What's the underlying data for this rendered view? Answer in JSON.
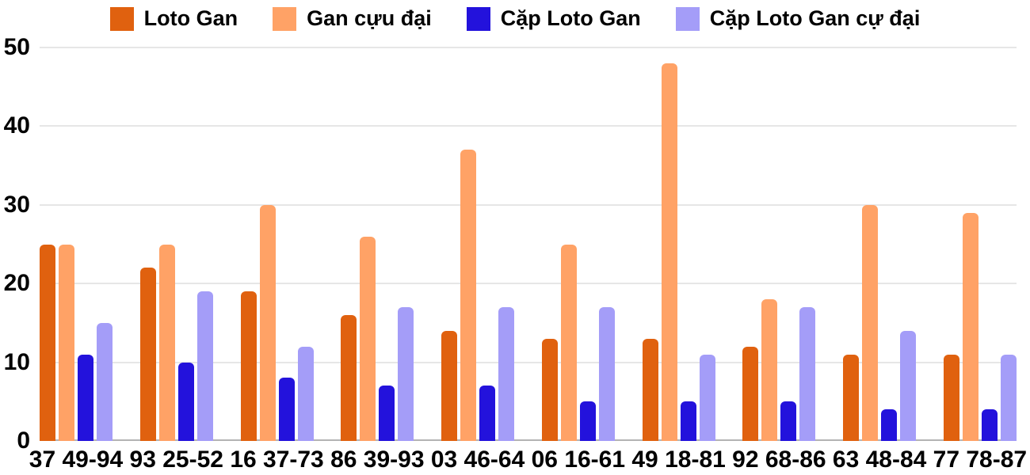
{
  "chart_data": {
    "type": "bar",
    "title": "",
    "xlabel": "",
    "ylabel": "",
    "categories": [
      "37 49-94",
      "93 25-52",
      "16 37-73",
      "86 39-93",
      "03 46-64",
      "06 16-61",
      "49 18-81",
      "92 68-86",
      "63 48-84",
      "77 78-87"
    ],
    "series": [
      {
        "name": "Loto Gan",
        "color": "#E0610F",
        "values": [
          25,
          22,
          19,
          16,
          14,
          13,
          13,
          12,
          11,
          11
        ]
      },
      {
        "name": "Gan cựu đại",
        "color": "#FFA266",
        "values": [
          25,
          25,
          30,
          26,
          37,
          25,
          48,
          18,
          30,
          29
        ]
      },
      {
        "name": "Cặp Loto Gan",
        "color": "#2312DC",
        "values": [
          11,
          10,
          8,
          7,
          7,
          5,
          5,
          5,
          4,
          4
        ]
      },
      {
        "name": "Cặp Loto Gan cự đại",
        "color": "#A49DF8",
        "values": [
          15,
          19,
          12,
          17,
          17,
          17,
          11,
          17,
          14,
          11
        ]
      }
    ],
    "y_ticks": [
      0,
      10,
      20,
      30,
      40,
      50
    ],
    "ylim": [
      0,
      50
    ],
    "grid": true,
    "legend_position": "top"
  },
  "colors": {
    "background": "#FFFFFF",
    "gridline": "#E6E6E6",
    "baseline": "#B3B3B3",
    "text": "#000000"
  }
}
